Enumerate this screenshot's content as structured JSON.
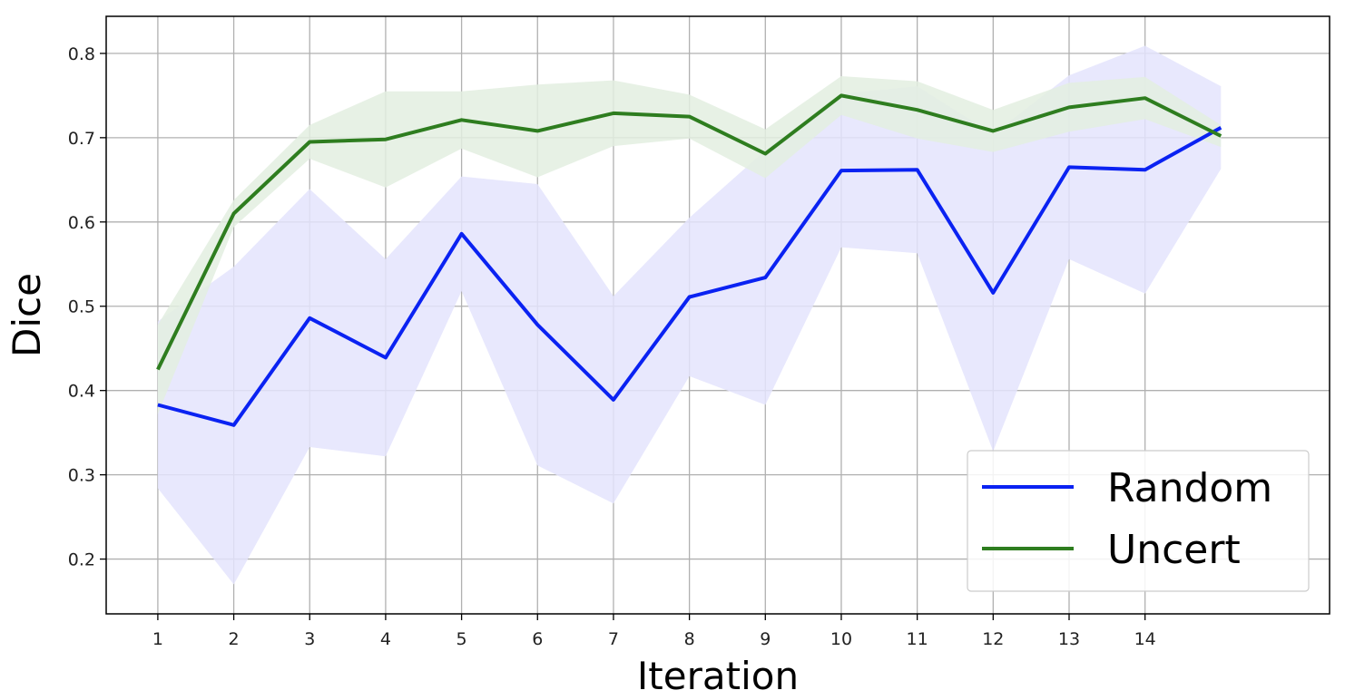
{
  "chart_data": {
    "type": "line",
    "title": "",
    "xlabel": "Iteration",
    "ylabel": "Dice",
    "x": [
      1,
      2,
      3,
      4,
      5,
      6,
      7,
      8,
      9,
      10,
      11,
      12,
      13,
      14,
      15
    ],
    "xticks": [
      "1",
      "2",
      "3",
      "4",
      "5",
      "6",
      "7",
      "8",
      "9",
      "10",
      "11",
      "12",
      "13",
      "14"
    ],
    "yticks": [
      "0.2",
      "0.3",
      "0.4",
      "0.5",
      "0.6",
      "0.7",
      "0.8"
    ],
    "xlim": [
      0.32,
      16.43
    ],
    "ylim": [
      0.135,
      0.844
    ],
    "grid": true,
    "legend_position": "bottom-right",
    "series": [
      {
        "name": "Random",
        "color": "#0a22f2",
        "band_color": "#e4e4fd",
        "values": [
          0.383,
          0.359,
          0.486,
          0.439,
          0.586,
          0.478,
          0.389,
          0.511,
          0.534,
          0.661,
          0.662,
          0.516,
          0.665,
          0.662,
          0.712
        ],
        "lower": [
          0.284,
          0.17,
          0.333,
          0.322,
          0.518,
          0.311,
          0.266,
          0.417,
          0.383,
          0.57,
          0.563,
          0.328,
          0.556,
          0.515,
          0.663
        ],
        "upper": [
          0.482,
          0.547,
          0.639,
          0.556,
          0.654,
          0.645,
          0.512,
          0.605,
          0.685,
          0.752,
          0.761,
          0.704,
          0.774,
          0.809,
          0.761
        ]
      },
      {
        "name": "Uncert",
        "color": "#2e7d1f",
        "band_color": "#e3efe0",
        "values": [
          0.425,
          0.61,
          0.695,
          0.698,
          0.721,
          0.708,
          0.729,
          0.725,
          0.681,
          0.75,
          0.733,
          0.708,
          0.736,
          0.747,
          0.702
        ],
        "lower": [
          0.372,
          0.594,
          0.675,
          0.641,
          0.687,
          0.653,
          0.69,
          0.699,
          0.652,
          0.727,
          0.699,
          0.683,
          0.707,
          0.722,
          0.689
        ],
        "upper": [
          0.478,
          0.626,
          0.715,
          0.755,
          0.755,
          0.763,
          0.768,
          0.751,
          0.71,
          0.773,
          0.767,
          0.733,
          0.765,
          0.772,
          0.715
        ]
      }
    ]
  }
}
